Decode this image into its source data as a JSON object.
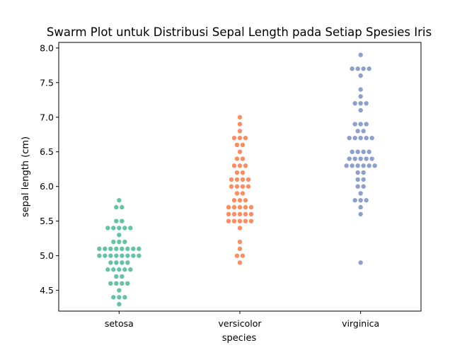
{
  "chart_data": {
    "type": "scatter",
    "subtype": "swarm",
    "title": "Swarm Plot untuk Distribusi Sepal Length pada Setiap Spesies Iris",
    "xlabel": "species",
    "ylabel": "sepal length (cm)",
    "categories": [
      "setosa",
      "versicolor",
      "virginica"
    ],
    "ylim": [
      4.2,
      8.08
    ],
    "yticks": [
      "4.5",
      "5.0",
      "5.5",
      "6.0",
      "6.5",
      "7.0",
      "7.5",
      "8.0"
    ],
    "grid": false,
    "legend": "none",
    "colors": {
      "setosa": "#66c2a5",
      "versicolor": "#fc8d62",
      "virginica": "#8da0cb"
    },
    "series": [
      {
        "category": "setosa",
        "values": [
          5.1,
          4.9,
          4.7,
          4.6,
          5.0,
          5.4,
          4.6,
          5.0,
          4.4,
          4.9,
          5.4,
          4.8,
          4.8,
          4.3,
          5.8,
          5.7,
          5.4,
          5.1,
          5.7,
          5.1,
          5.4,
          5.1,
          4.6,
          5.1,
          4.8,
          5.0,
          5.0,
          5.2,
          5.2,
          4.7,
          4.8,
          5.4,
          5.2,
          5.5,
          4.9,
          5.0,
          5.5,
          4.9,
          4.4,
          5.1,
          5.0,
          4.5,
          4.4,
          5.0,
          5.1,
          4.8,
          5.1,
          4.6,
          5.3,
          5.0
        ]
      },
      {
        "category": "versicolor",
        "values": [
          7.0,
          6.4,
          6.9,
          5.5,
          6.5,
          5.7,
          6.3,
          4.9,
          6.6,
          5.2,
          5.0,
          5.9,
          6.0,
          6.1,
          5.6,
          6.7,
          5.6,
          5.8,
          6.2,
          5.6,
          5.9,
          6.1,
          6.3,
          6.1,
          6.4,
          6.6,
          6.8,
          6.7,
          6.0,
          5.7,
          5.5,
          5.5,
          5.8,
          6.0,
          5.4,
          6.0,
          6.7,
          6.3,
          5.6,
          5.5,
          5.5,
          6.1,
          5.8,
          5.0,
          5.6,
          5.7,
          5.7,
          6.2,
          5.1,
          5.7
        ]
      },
      {
        "category": "virginica",
        "values": [
          6.3,
          5.8,
          7.1,
          6.3,
          6.5,
          7.6,
          4.9,
          7.3,
          6.7,
          7.2,
          6.5,
          6.4,
          6.8,
          5.7,
          5.8,
          6.4,
          6.5,
          7.7,
          7.7,
          6.0,
          6.9,
          5.6,
          7.7,
          6.3,
          6.7,
          7.2,
          6.2,
          6.1,
          6.4,
          7.2,
          7.4,
          7.9,
          6.4,
          6.3,
          6.1,
          7.7,
          6.3,
          6.4,
          6.0,
          6.9,
          6.7,
          6.9,
          5.8,
          6.8,
          6.7,
          6.7,
          6.3,
          6.5,
          6.2,
          5.9
        ]
      }
    ]
  }
}
